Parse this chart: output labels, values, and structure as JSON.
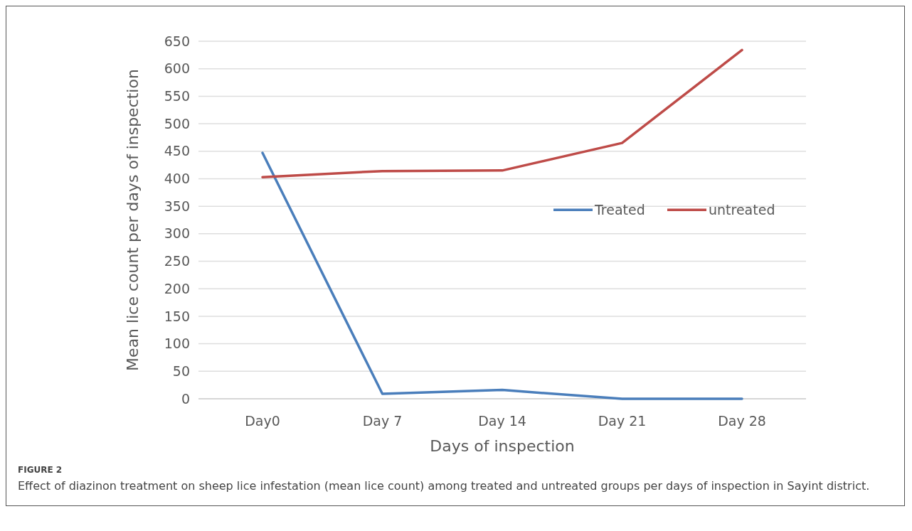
{
  "chart_data": {
    "type": "line",
    "xlabel": "Days of inspection",
    "ylabel": "Mean lice count per days of inspection",
    "categories": [
      "Day0",
      "Day 7",
      "Day 14",
      "Day 21",
      "Day 28"
    ],
    "series": [
      {
        "name": "Treated",
        "color": "#4a7ebb",
        "values": [
          447,
          9,
          16,
          0,
          0
        ]
      },
      {
        "name": "untreated",
        "color": "#be4b48",
        "values": [
          403,
          414,
          415,
          465,
          634
        ]
      }
    ],
    "ylim": [
      0,
      650
    ],
    "yticks": [
      0,
      50,
      100,
      150,
      200,
      250,
      300,
      350,
      400,
      450,
      500,
      550,
      600,
      650
    ],
    "grid": "y",
    "legend": "right",
    "marker": "none",
    "line_style": "solid",
    "annotations": [
      "FIGURE 2",
      "Effect of diazinon treatment on sheep lice infestation (mean lice count) among treated and untreated groups per days of inspection in Sayint district."
    ]
  }
}
